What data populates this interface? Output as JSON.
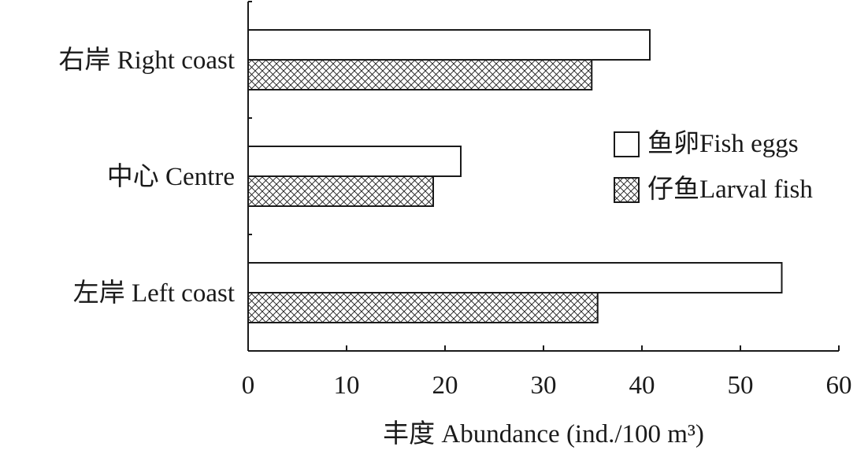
{
  "chart_data": {
    "type": "bar",
    "orientation": "horizontal",
    "categories": [
      "右岸 Right coast",
      "中心 Centre",
      "左岸 Left coast"
    ],
    "series": [
      {
        "name": "鱼卵Fish eggs",
        "values": [
          40.8,
          21.6,
          54.2
        ],
        "pattern": "none"
      },
      {
        "name": "仔鱼Larval fish",
        "values": [
          34.9,
          18.8,
          35.5
        ],
        "pattern": "crosshatch"
      }
    ],
    "xlabel": "丰度 Abundance (ind./100 m³)",
    "ylabel": "",
    "xlim": [
      0,
      60
    ],
    "x_ticks": [
      "0",
      "10",
      "20",
      "30",
      "40",
      "50",
      "60"
    ],
    "grid": false,
    "legend_position": "right",
    "colors": {
      "ink": "#1a1a1a",
      "fill": "#ffffff"
    }
  }
}
